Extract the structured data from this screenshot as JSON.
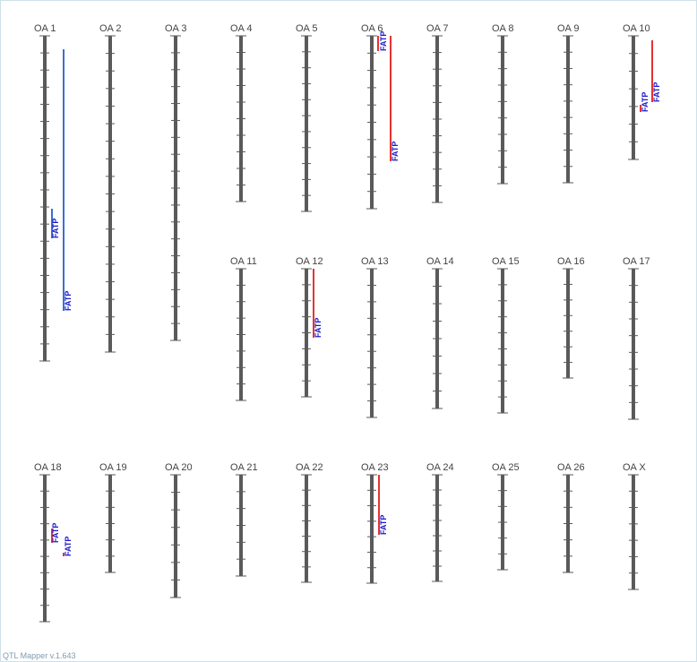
{
  "footer": "QTL Mapper v.1.643",
  "colors": {
    "chromosome": "#5a5a5a",
    "qtl_red": "#e53333",
    "qtl_blue": "#3a6fd6",
    "label": "#1a1acc",
    "title": "#444444"
  },
  "chromosomes": [
    {
      "name": "OA 1",
      "ticks": 18,
      "qtls": [
        {
          "label": "FATP",
          "color": "blue"
        },
        {
          "label": "FATP",
          "color": "blue"
        }
      ]
    },
    {
      "name": "OA 2",
      "ticks": 17,
      "qtls": []
    },
    {
      "name": "OA 3",
      "ticks": 17,
      "qtls": []
    },
    {
      "name": "OA 4",
      "ticks": 9,
      "qtls": []
    },
    {
      "name": "OA 5",
      "ticks": 10,
      "qtls": []
    },
    {
      "name": "OA 6",
      "ticks": 9,
      "qtls": [
        {
          "label": "FATP",
          "color": "red"
        },
        {
          "label": "FATP",
          "color": "red"
        }
      ]
    },
    {
      "name": "OA 7",
      "ticks": 9,
      "qtls": []
    },
    {
      "name": "OA 8",
      "ticks": 8,
      "qtls": []
    },
    {
      "name": "OA 9",
      "ticks": 8,
      "qtls": []
    },
    {
      "name": "OA 10",
      "ticks": 6,
      "qtls": [
        {
          "label": "FATP",
          "color": "red"
        },
        {
          "label": "FATP",
          "color": "red"
        }
      ]
    },
    {
      "name": "OA 11",
      "ticks": 7,
      "qtls": []
    },
    {
      "name": "OA 12",
      "ticks": 7,
      "qtls": [
        {
          "label": "FATP",
          "color": "red"
        }
      ]
    },
    {
      "name": "OA 13",
      "ticks": 8,
      "qtls": []
    },
    {
      "name": "OA 14",
      "ticks": 7,
      "qtls": []
    },
    {
      "name": "OA 15",
      "ticks": 8,
      "qtls": []
    },
    {
      "name": "OA 16",
      "ticks": 6,
      "qtls": []
    },
    {
      "name": "OA 17",
      "ticks": 8,
      "qtls": []
    },
    {
      "name": "OA 18",
      "ticks": 8,
      "qtls": [
        {
          "label": "FATP",
          "color": "red"
        },
        {
          "label": "FATP",
          "color": "red"
        }
      ]
    },
    {
      "name": "OA 19",
      "ticks": 5,
      "qtls": []
    },
    {
      "name": "OA 20",
      "ticks": 6,
      "qtls": []
    },
    {
      "name": "OA 21",
      "ticks": 5,
      "qtls": []
    },
    {
      "name": "OA 22",
      "ticks": 6,
      "qtls": []
    },
    {
      "name": "OA 23",
      "ticks": 6,
      "qtls": [
        {
          "label": "FATP",
          "color": "red"
        }
      ]
    },
    {
      "name": "OA 24",
      "ticks": 6,
      "qtls": []
    },
    {
      "name": "OA 25",
      "ticks": 5,
      "qtls": []
    },
    {
      "name": "OA 26",
      "ticks": 5,
      "qtls": []
    },
    {
      "name": "OA X",
      "ticks": 6,
      "qtls": []
    }
  ]
}
